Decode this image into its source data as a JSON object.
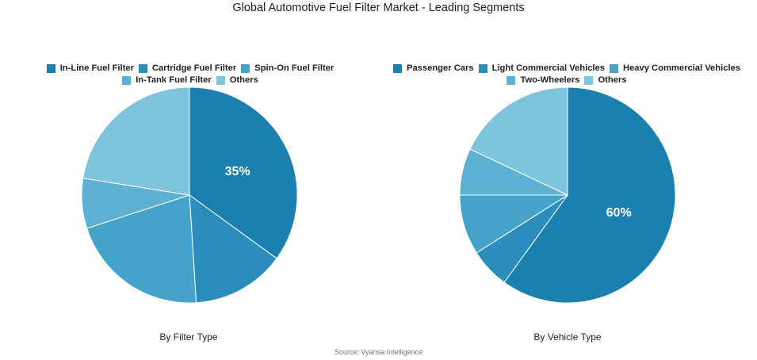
{
  "title": "Global Automotive Fuel Filter Market - Leading Segments",
  "source": "Source: Vyansa Intelligence",
  "chart_data": [
    {
      "type": "pie",
      "title": "",
      "caption": "By Filter Type",
      "legend_position": "top",
      "categories": [
        "In-Line Fuel Filter",
        "Cartridge Fuel Filter",
        "Spin-On Fuel Filter",
        "In-Tank Fuel Filter",
        "Others"
      ],
      "values": [
        35,
        14,
        21,
        7.5,
        22.5
      ],
      "colors": [
        "#1b7fb0",
        "#2b8dbb",
        "#45a3c9",
        "#5fb1d2",
        "#7ec4dd"
      ],
      "data_labels": [
        "35%",
        "",
        "",
        "",
        ""
      ],
      "start_angle_deg": 0,
      "direction": "clockwise"
    },
    {
      "type": "pie",
      "title": "",
      "caption": "By Vehicle Type",
      "legend_position": "top",
      "categories": [
        "Passenger Cars",
        "Light Commercial Vehicles",
        "Heavy Commercial Vehicles",
        "Two-Wheelers",
        "Others"
      ],
      "values": [
        60,
        6,
        9,
        7,
        18
      ],
      "colors": [
        "#1b7fb0",
        "#2b8dbb",
        "#45a3c9",
        "#5fb1d2",
        "#7ec4dd"
      ],
      "data_labels": [
        "60%",
        "",
        "",
        "",
        ""
      ],
      "start_angle_deg": 0,
      "direction": "clockwise"
    }
  ]
}
